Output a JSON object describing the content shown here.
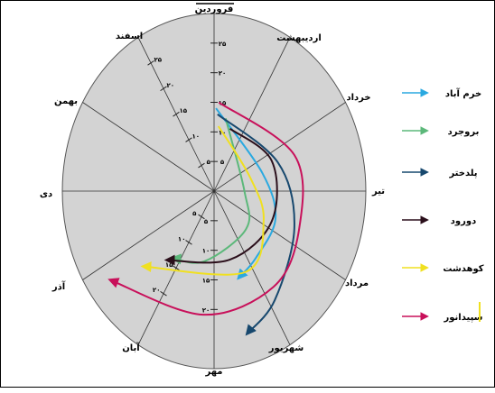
{
  "chart_data": {
    "type": "line",
    "polar": true,
    "background_color": "#d3d3d3",
    "months": [
      "فروردین",
      "اردیبهشت",
      "خرداد",
      "تیر",
      "مرداد",
      "شهریور",
      "مهر",
      "آبان",
      "آذر",
      "دی",
      "بهمن",
      "اسفند"
    ],
    "radial_ticks": [
      "۵",
      "۱۰",
      "۱۵",
      "۲۰",
      "۲۵"
    ],
    "axis_tick_labels": {
      "farvardin": [
        "۵",
        "۱۰",
        "۱۵",
        "۲۰",
        "۲۵"
      ],
      "mehr": [
        "۵",
        "۱۰",
        "۱۵",
        "۲۰"
      ],
      "aban": [
        "۵",
        "۱۰",
        "۱۵",
        "۲۰"
      ],
      "esfand": [
        "۵",
        "۱۰",
        "۱۵",
        "۲۰",
        "۲۵"
      ]
    },
    "rmax": 30,
    "series": [
      {
        "name": "خرم آباد",
        "color": "#2aa9e0",
        "points": [
          [
            0.05,
            14
          ],
          [
            2.4,
            10
          ],
          [
            3.7,
            13
          ],
          [
            4.8,
            14
          ],
          [
            5.4,
            15.5
          ]
        ]
      },
      {
        "name": "بروجرد",
        "color": "#5cb87a",
        "points": [
          [
            0.35,
            12.5
          ],
          [
            3.0,
            6
          ],
          [
            4.5,
            9
          ],
          [
            6.3,
            12
          ],
          [
            7.2,
            14
          ]
        ]
      },
      {
        "name": "پلدختر",
        "color": "#17486e",
        "points": [
          [
            0.1,
            13
          ],
          [
            2.3,
            13.5
          ],
          [
            3.7,
            17
          ],
          [
            4.9,
            22
          ],
          [
            5.5,
            25
          ]
        ]
      },
      {
        "name": "دورود",
        "color": "#2b0f1b",
        "points": [
          [
            0.55,
            11
          ],
          [
            2.2,
            12.5
          ],
          [
            3.8,
            12.5
          ],
          [
            5.5,
            12
          ],
          [
            7.3,
            15
          ]
        ]
      },
      {
        "name": "کوهدشت",
        "color": "#f0e020",
        "points": [
          [
            0.15,
            11
          ],
          [
            2.4,
            7.5
          ],
          [
            3.9,
            11
          ],
          [
            5.2,
            15
          ],
          [
            7.6,
            19
          ]
        ]
      },
      {
        "name": "سپیدانور",
        "color": "#c8105a",
        "points": [
          [
            0.12,
            15
          ],
          [
            2.3,
            17
          ],
          [
            3.7,
            18
          ],
          [
            4.8,
            20
          ],
          [
            6.2,
            21
          ],
          [
            7.8,
            25.5
          ]
        ]
      }
    ]
  }
}
